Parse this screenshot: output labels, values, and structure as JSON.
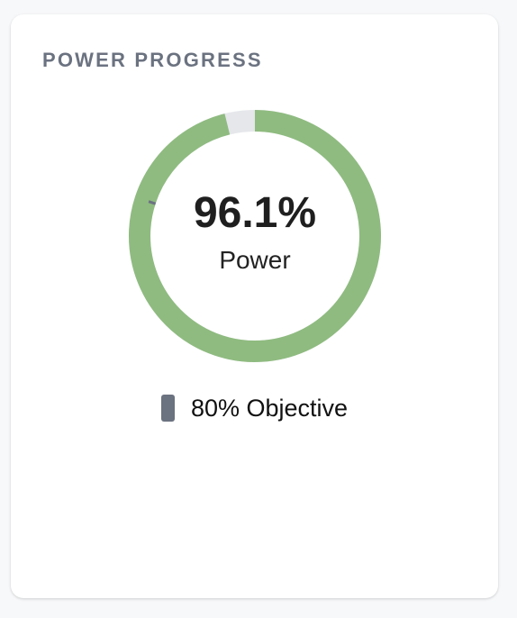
{
  "card": {
    "title": "POWER PROGRESS"
  },
  "gauge": {
    "value": 96.1,
    "value_text": "96.1%",
    "label": "Power",
    "target": 80
  },
  "legend": {
    "objective_text": "80% Objective"
  },
  "colors": {
    "progress": "#8fbb80",
    "track": "#e5e7eb",
    "objective": "#6b7280"
  }
}
